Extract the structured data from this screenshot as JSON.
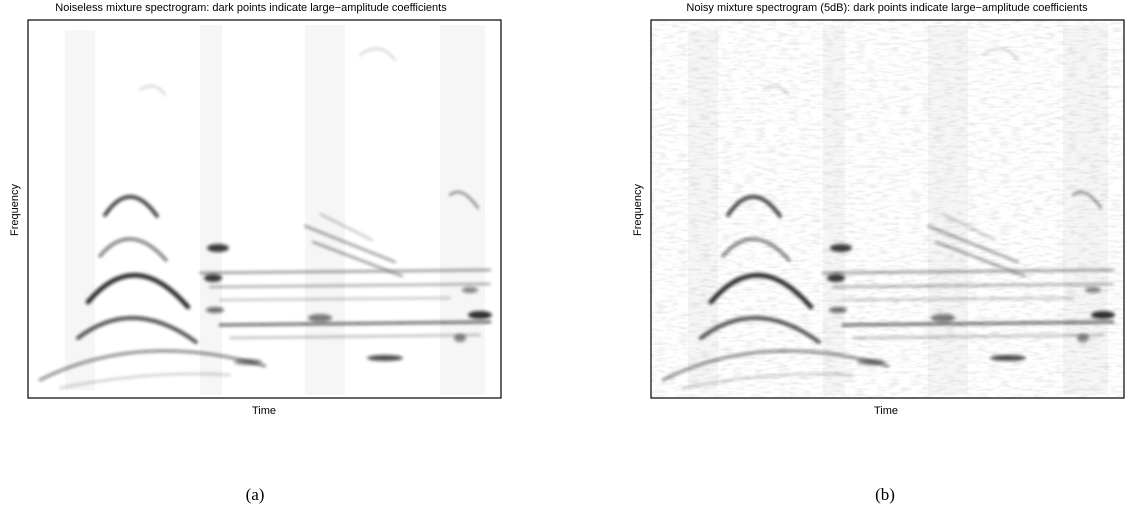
{
  "panels": [
    {
      "title": "Noiseless mixture spectrogram: dark points indicate large−amplitude coefficients",
      "y_label": "Frequency",
      "x_label": "Time",
      "caption": "(a)"
    },
    {
      "title": "Noisy mixture spectrogram (5dB): dark points indicate large−amplitude coefficients",
      "y_label": "Frequency",
      "x_label": "Time",
      "caption": "(b)"
    }
  ]
}
